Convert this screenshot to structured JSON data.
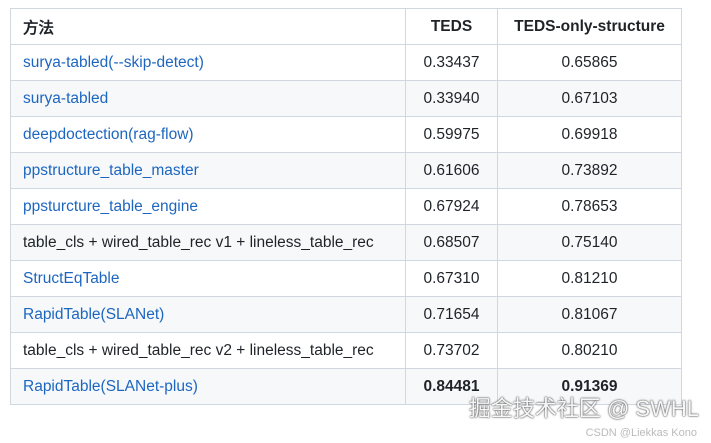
{
  "table": {
    "header": [
      "方法",
      "TEDS",
      "TEDS-only-structure"
    ],
    "rows": [
      {
        "cells": [
          "surya-tabled(--skip-detect)",
          "0.33437",
          "0.65865"
        ],
        "link": true,
        "bold": false
      },
      {
        "cells": [
          "surya-tabled",
          "0.33940",
          "0.67103"
        ],
        "link": true,
        "bold": false
      },
      {
        "cells": [
          "deepdoctection(rag-flow)",
          "0.59975",
          "0.69918"
        ],
        "link": true,
        "bold": false
      },
      {
        "cells": [
          "ppstructure_table_master",
          "0.61606",
          "0.73892"
        ],
        "link": true,
        "bold": false
      },
      {
        "cells": [
          "ppsturcture_table_engine",
          "0.67924",
          "0.78653"
        ],
        "link": true,
        "bold": false
      },
      {
        "cells": [
          "table_cls + wired_table_rec v1 + lineless_table_rec",
          "0.68507",
          "0.75140"
        ],
        "link": false,
        "bold": false
      },
      {
        "cells": [
          "StructEqTable",
          "0.67310",
          "0.81210"
        ],
        "link": true,
        "bold": false
      },
      {
        "cells": [
          "RapidTable(SLANet)",
          "0.71654",
          "0.81067"
        ],
        "link": true,
        "bold": false
      },
      {
        "cells": [
          "table_cls + wired_table_rec v2 + lineless_table_rec",
          "0.73702",
          "0.80210"
        ],
        "link": false,
        "bold": false
      },
      {
        "cells": [
          "RapidTable(SLANet-plus)",
          "0.84481",
          "0.91369"
        ],
        "link": true,
        "bold": true
      }
    ]
  },
  "watermark": {
    "main": "掘金技术社区 @ SWHL",
    "sub": "CSDN @Liekkas Kono"
  }
}
